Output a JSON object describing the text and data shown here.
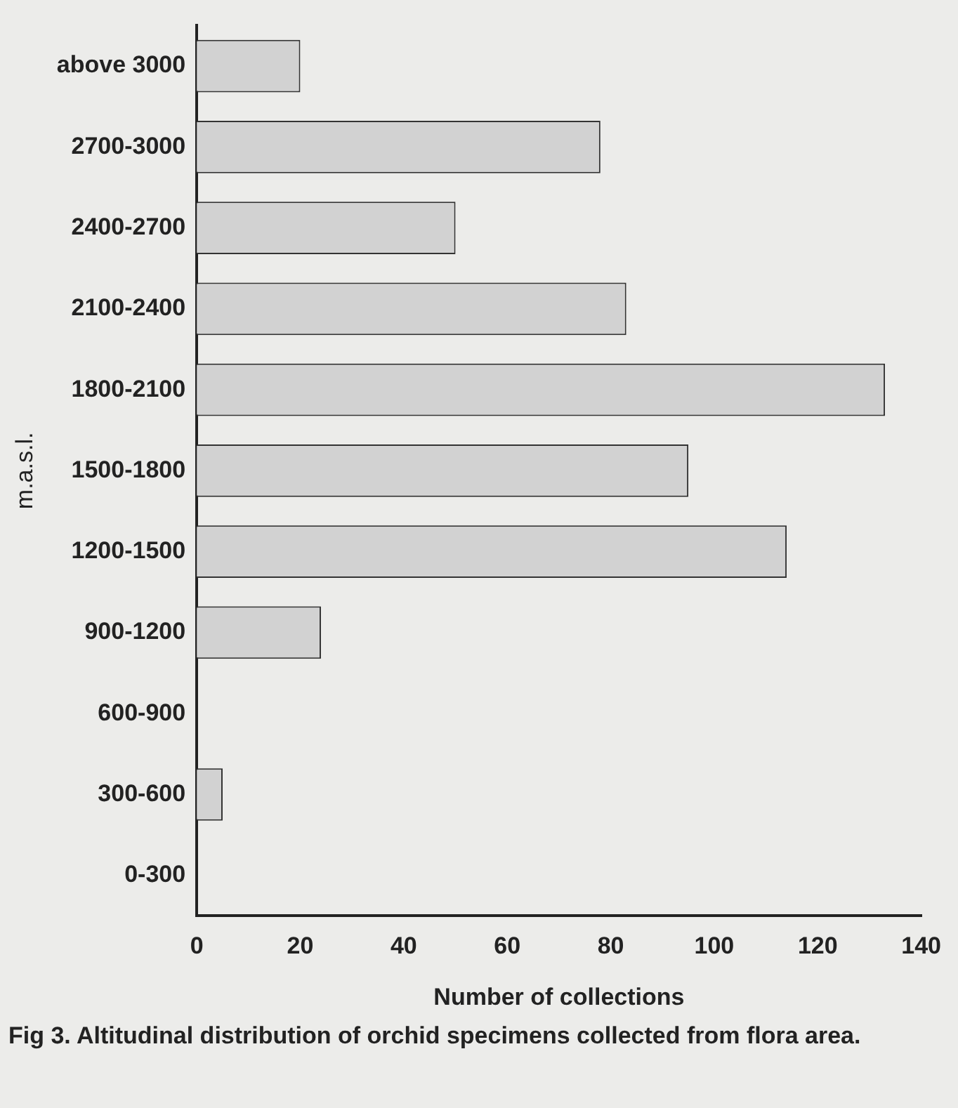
{
  "chart_data": {
    "type": "bar",
    "orientation": "horizontal",
    "categories": [
      "above 3000",
      "2700-3000",
      "2400-2700",
      "2100-2400",
      "1800-2100",
      "1500-1800",
      "1200-1500",
      "900-1200",
      "600-900",
      "300-600",
      "0-300"
    ],
    "values": [
      20,
      78,
      50,
      83,
      133,
      95,
      114,
      24,
      0,
      5,
      0
    ],
    "color": "#d2d2d2",
    "xlim": [
      0,
      140
    ],
    "xticks": [
      0,
      20,
      40,
      60,
      80,
      100,
      120,
      140
    ],
    "xlabel": "Number of collections",
    "ylabel": "m.a.s.l.",
    "grid": false,
    "legend": false,
    "annotations": [
      "Fig 3. Altitudinal distribution of orchid specimens collected from flora area."
    ]
  }
}
